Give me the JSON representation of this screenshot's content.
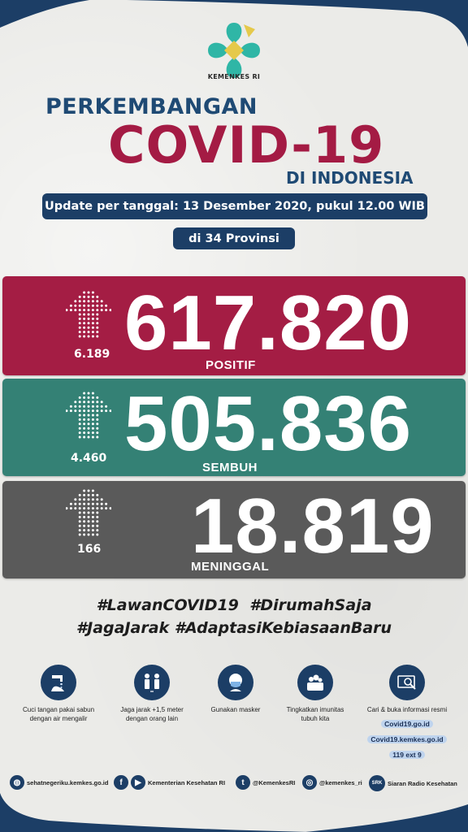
{
  "brand": {
    "name": "KEMENKES RI",
    "colors": {
      "navy": "#1c3e66",
      "crimson": "#a41d44",
      "teal": "#348175",
      "gray": "#5a5a5a"
    }
  },
  "header": {
    "title_top": "PERKEMBANGAN",
    "title_main": "COVID-19",
    "title_sub": "DI INDONESIA",
    "update_text": "Update per tanggal: 13 Desember 2020, pukul 12.00 WIB",
    "provinces_text": "di 34 Provinsi"
  },
  "stats": {
    "positive": {
      "value": "617.820",
      "delta": "6.189",
      "label": "POSITIF",
      "icon": "up-arrow-icon"
    },
    "recovered": {
      "value": "505.836",
      "delta": "4.460",
      "label": "SEMBUH",
      "icon": "up-arrow-icon"
    },
    "deaths": {
      "value": "18.819",
      "delta": "166",
      "label": "MENINGGAL",
      "icon": "up-arrow-icon"
    }
  },
  "hashtags": {
    "line1": "#LawanCOVID19  #DirumahSaja",
    "line2": "#JagaJarak #AdaptasiKebiasaanBaru"
  },
  "tips": [
    {
      "icon": "handwash-icon",
      "text1": "Cuci tangan pakai sabun",
      "text2": "dengan air mengalir"
    },
    {
      "icon": "distance-icon",
      "text1": "Jaga jarak +1,5 meter",
      "text2": "dengan orang lain"
    },
    {
      "icon": "mask-icon",
      "text1": "Gunakan masker",
      "text2": ""
    },
    {
      "icon": "immunity-icon",
      "text1": "Tingkatkan imunitas",
      "text2": "tubuh kita"
    },
    {
      "icon": "info-search-icon",
      "text1": "Cari & buka informasi resmi",
      "link1": "Covid19.go.id",
      "link2": "Covid19.kemkes.go.id",
      "link3": "119 ext 9"
    }
  ],
  "footer": {
    "website": "sehatnegeriku.kemkes.go.id",
    "fb_yt": "Kementerian Kesehatan RI",
    "twitter": "@KemenkesRI",
    "instagram": "@kemenkes_ri",
    "radio": "Siaran Radio Kesehatan",
    "radio_badge": "SRK"
  }
}
